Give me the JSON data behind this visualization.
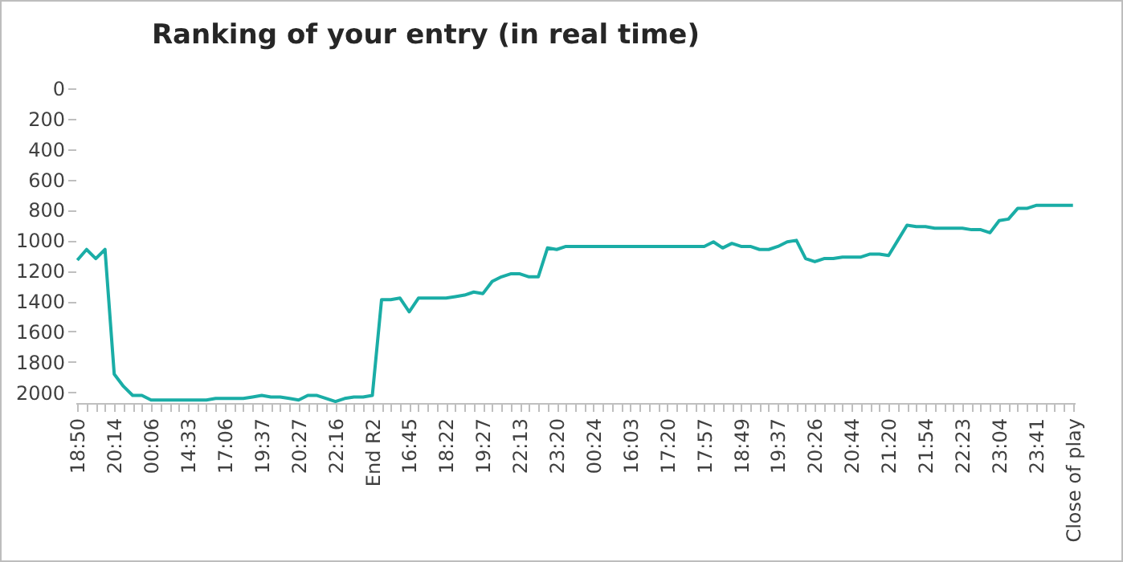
{
  "chart_data": {
    "type": "line",
    "title": "Ranking of your entry (in real time)",
    "categories": [
      "18:50",
      null,
      null,
      null,
      "20:14",
      null,
      null,
      null,
      "00:06",
      null,
      null,
      null,
      "14:33",
      null,
      null,
      null,
      "17:06",
      null,
      null,
      null,
      "19:37",
      null,
      null,
      null,
      "20:27",
      null,
      null,
      null,
      "22:16",
      null,
      null,
      null,
      "End R2",
      null,
      null,
      null,
      "16:45",
      null,
      null,
      null,
      "18:22",
      null,
      null,
      null,
      "19:27",
      null,
      null,
      null,
      "22:13",
      null,
      null,
      null,
      "23:20",
      null,
      null,
      null,
      "00:24",
      null,
      null,
      null,
      "16:03",
      null,
      null,
      null,
      "17:20",
      null,
      null,
      null,
      "17:57",
      null,
      null,
      null,
      "18:49",
      null,
      null,
      null,
      "19:37",
      null,
      null,
      null,
      "20:26",
      null,
      null,
      null,
      "20:44",
      null,
      null,
      null,
      "21:20",
      null,
      null,
      null,
      "21:54",
      null,
      null,
      null,
      "22:23",
      null,
      null,
      null,
      "23:04",
      null,
      null,
      null,
      "23:41",
      null,
      null,
      null,
      "Close of play"
    ],
    "series": [
      {
        "color": "#1aada6",
        "values": [
          1130,
          1060,
          1120,
          1060,
          1880,
          1960,
          2020,
          2020,
          2050,
          2050,
          2050,
          2050,
          2050,
          2050,
          2050,
          2040,
          2040,
          2040,
          2040,
          2030,
          2020,
          2030,
          2030,
          2040,
          2050,
          2020,
          2020,
          2040,
          2060,
          2040,
          2030,
          2030,
          2020,
          1390,
          1390,
          1380,
          1470,
          1380,
          1380,
          1380,
          1380,
          1370,
          1360,
          1340,
          1350,
          1270,
          1240,
          1220,
          1220,
          1240,
          1240,
          1050,
          1060,
          1040,
          1040,
          1040,
          1040,
          1040,
          1040,
          1040,
          1040,
          1040,
          1040,
          1040,
          1040,
          1040,
          1040,
          1040,
          1040,
          1010,
          1050,
          1020,
          1040,
          1040,
          1060,
          1060,
          1040,
          1010,
          1000,
          1120,
          1140,
          1120,
          1120,
          1110,
          1110,
          1110,
          1090,
          1090,
          1100,
          1000,
          900,
          910,
          910,
          920,
          920,
          920,
          920,
          930,
          930,
          950,
          870,
          860,
          790,
          790,
          770,
          770,
          770,
          770,
          770
        ]
      }
    ],
    "ylim": [
      2070,
      0
    ],
    "yticks": [
      0,
      200,
      400,
      600,
      800,
      1000,
      1200,
      1400,
      1600,
      1800,
      2000
    ],
    "grid": false,
    "legend": false,
    "marker": "none",
    "line_style": "solid"
  }
}
